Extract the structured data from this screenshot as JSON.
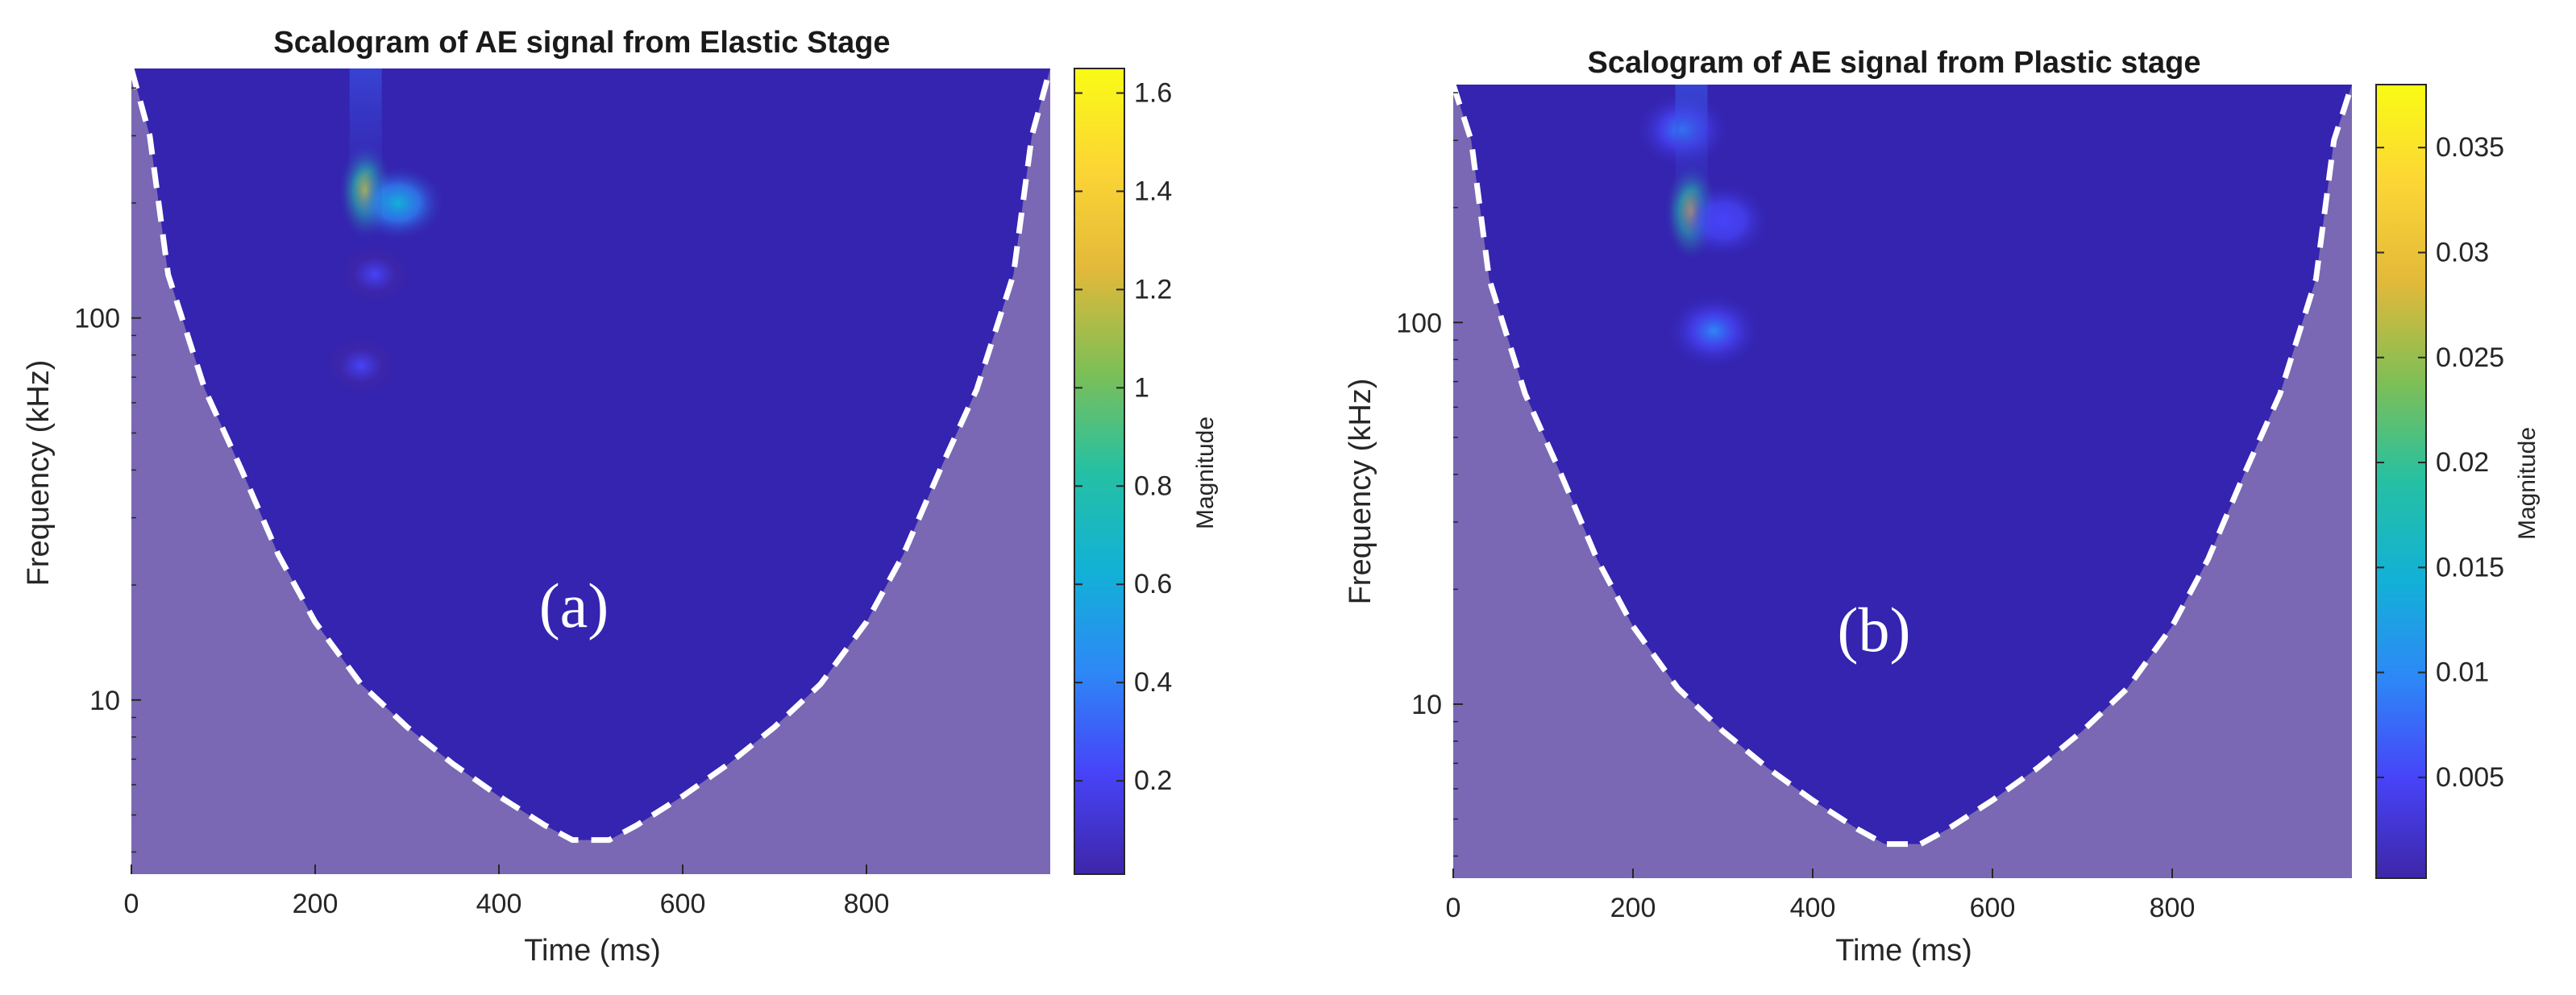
{
  "chart_data": [
    {
      "type": "heatmap",
      "title": "Scalogram of AE signal from Elastic Stage",
      "panel_letter": "(a)",
      "xlabel": "Time (ms)",
      "ylabel": "Frequency (kHz)",
      "xlim": [
        0,
        1000
      ],
      "ylim": [
        3.5,
        450
      ],
      "yscale": "log",
      "xticks": [
        0,
        200,
        400,
        600,
        800
      ],
      "xtick_labels": [
        "0",
        "200",
        "400",
        "600",
        "800"
      ],
      "yticks": [
        10,
        100
      ],
      "ytick_labels": [
        "10",
        "100"
      ],
      "colorbar": {
        "label": "Magnitude",
        "range": [
          0.01,
          1.65
        ],
        "ticks": [
          0.2,
          0.4,
          0.6,
          0.8,
          1.0,
          1.2,
          1.4,
          1.6
        ],
        "tick_labels": [
          "0.2",
          "0.4",
          "0.6",
          "0.8",
          "1",
          "1.2",
          "1.4",
          "1.6"
        ]
      },
      "hotspots": [
        {
          "t": 255,
          "f": 215,
          "magnitude": 1.6,
          "label": "peak"
        },
        {
          "t": 290,
          "f": 200,
          "magnitude": 0.7
        },
        {
          "t": 265,
          "f": 130,
          "magnitude": 0.2
        },
        {
          "t": 250,
          "f": 75,
          "magnitude": 0.12
        }
      ],
      "cone_of_influence": {
        "t": [
          0,
          20,
          40,
          80,
          120,
          160,
          200,
          250,
          300,
          350,
          400,
          450,
          480,
          520,
          550,
          600,
          650,
          700,
          750,
          800,
          840,
          880,
          920,
          960,
          980,
          1000
        ],
        "f": [
          450,
          300,
          130,
          65,
          40,
          24,
          16,
          11,
          8.5,
          6.8,
          5.6,
          4.7,
          4.3,
          4.3,
          4.7,
          5.6,
          6.8,
          8.5,
          11,
          16,
          24,
          40,
          65,
          130,
          300,
          450
        ]
      }
    },
    {
      "type": "heatmap",
      "title": "Scalogram of AE signal from Plastic stage",
      "panel_letter": "(b)",
      "xlabel": "Time (ms)",
      "ylabel": "Frequency (kHz)",
      "xlim": [
        0,
        1000
      ],
      "ylim": [
        3.5,
        420
      ],
      "yscale": "log",
      "xticks": [
        0,
        200,
        400,
        600,
        800
      ],
      "xtick_labels": [
        "0",
        "200",
        "400",
        "600",
        "800"
      ],
      "yticks": [
        10,
        100
      ],
      "ytick_labels": [
        "10",
        "100"
      ],
      "colorbar": {
        "label": "Magnitude",
        "range": [
          0.0002,
          0.038
        ],
        "ticks": [
          0.005,
          0.01,
          0.015,
          0.02,
          0.025,
          0.03,
          0.035
        ],
        "tick_labels": [
          "0.005",
          "0.01",
          "0.015",
          "0.02",
          "0.025",
          "0.03",
          "0.035"
        ]
      },
      "hotspots": [
        {
          "t": 265,
          "f": 195,
          "magnitude": 0.034,
          "label": "peak"
        },
        {
          "t": 290,
          "f": 95,
          "magnitude": 0.012
        },
        {
          "t": 300,
          "f": 185,
          "magnitude": 0.006
        },
        {
          "t": 255,
          "f": 320,
          "magnitude": 0.008
        }
      ],
      "cone_of_influence": {
        "t": [
          0,
          20,
          40,
          80,
          120,
          160,
          200,
          250,
          300,
          350,
          400,
          450,
          480,
          520,
          550,
          600,
          650,
          700,
          750,
          800,
          840,
          880,
          920,
          960,
          980,
          1000
        ],
        "f": [
          420,
          300,
          130,
          65,
          40,
          24,
          16,
          11,
          8.5,
          6.8,
          5.6,
          4.7,
          4.3,
          4.3,
          4.7,
          5.6,
          6.8,
          8.5,
          11,
          16,
          24,
          40,
          65,
          130,
          300,
          420
        ]
      }
    }
  ],
  "colors": {
    "background_field": "#3424b0",
    "coi_shade": "#7a68b4",
    "coi_line": "#ffffff",
    "colormap": [
      "#3e26a8",
      "#4743f8",
      "#2e87f7",
      "#12b1d7",
      "#25c0a3",
      "#7ebf55",
      "#e2b93a",
      "#fcd535",
      "#f9fb15"
    ]
  }
}
